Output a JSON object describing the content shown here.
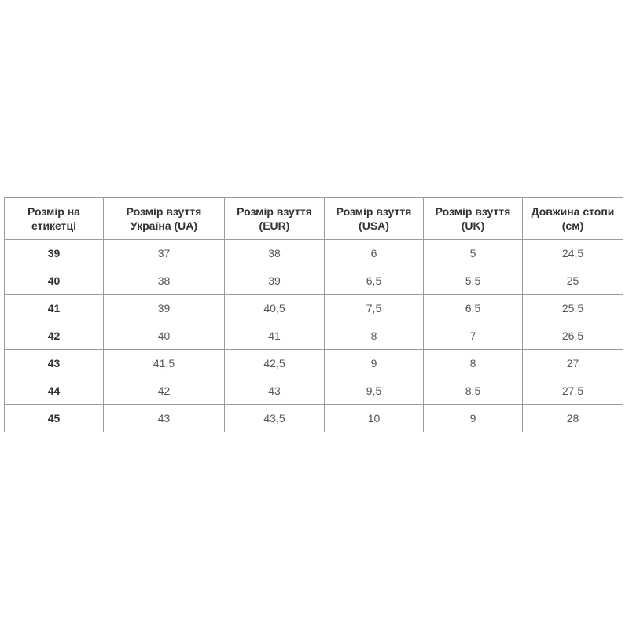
{
  "table": {
    "headers": [
      "Розмір на етикетці",
      "Розмір взуття Україна (UA)",
      "Розмір взуття (EUR)",
      "Розмір взуття (USA)",
      "Розмір взуття (UK)",
      "Довжина стопи (см)"
    ],
    "rows": [
      [
        "39",
        "37",
        "38",
        "6",
        "5",
        "24,5"
      ],
      [
        "40",
        "38",
        "39",
        "6,5",
        "5,5",
        "25"
      ],
      [
        "41",
        "39",
        "40,5",
        "7,5",
        "6,5",
        "25,5"
      ],
      [
        "42",
        "40",
        "41",
        "8",
        "7",
        "26,5"
      ],
      [
        "43",
        "41,5",
        "42,5",
        "9",
        "8",
        "27"
      ],
      [
        "44",
        "42",
        "43",
        "9,5",
        "8,5",
        "27,5"
      ],
      [
        "45",
        "43",
        "43,5",
        "10",
        "9",
        "28"
      ]
    ]
  }
}
